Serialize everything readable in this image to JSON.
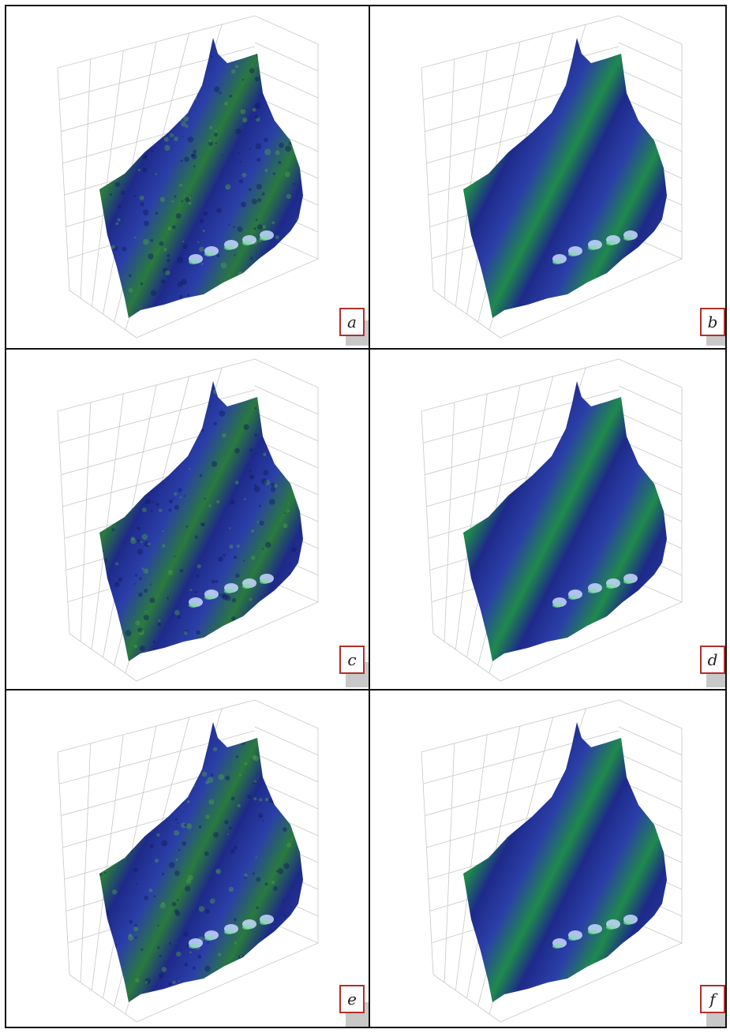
{
  "panels": [
    {
      "id": "a",
      "label": "a",
      "style": "noisy"
    },
    {
      "id": "b",
      "label": "b",
      "style": "smooth"
    },
    {
      "id": "c",
      "label": "c",
      "style": "noisy"
    },
    {
      "id": "d",
      "label": "d",
      "style": "smooth"
    },
    {
      "id": "e",
      "label": "e",
      "style": "noisy"
    },
    {
      "id": "f",
      "label": "f",
      "style": "smooth"
    }
  ],
  "colors": {
    "border": "#111111",
    "label_border": "#b2302a",
    "surface_dark": "#1e2a8a",
    "surface_mid": "#2b3fa8",
    "surface_band": "#1f8a4c",
    "grid": "#c8c8c8"
  }
}
